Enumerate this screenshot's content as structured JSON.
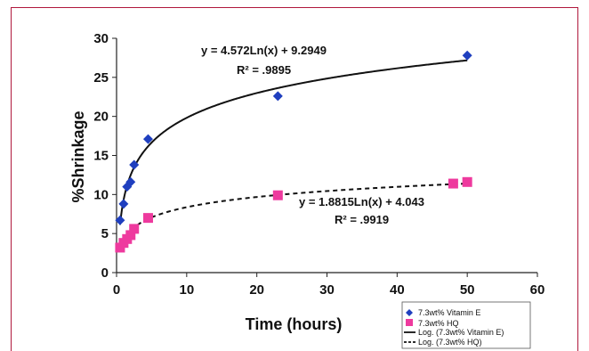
{
  "chart_data": {
    "type": "scatter",
    "xlabel": "Time (hours)",
    "ylabel": "%Shrinkage",
    "xlim": [
      0,
      60
    ],
    "ylim": [
      0,
      30
    ],
    "xticks": [
      "0",
      "10",
      "20",
      "30",
      "40",
      "50",
      "60"
    ],
    "yticks": [
      "0",
      "5",
      "10",
      "15",
      "20",
      "25",
      "30"
    ],
    "grid": false,
    "legend_position": "bottom-right",
    "series": [
      {
        "name": "7.3wt% Vitamin E",
        "marker": "diamond",
        "color": "#1f3fbf",
        "x": [
          0.5,
          1,
          1.5,
          2,
          2.5,
          4.5,
          23,
          50
        ],
        "y": [
          6.7,
          8.8,
          11.0,
          11.6,
          13.8,
          17.1,
          22.6,
          27.8
        ]
      },
      {
        "name": "7.3wt% HQ",
        "marker": "square",
        "color": "#ee3a9e",
        "x": [
          0.5,
          1,
          1.5,
          2,
          2.5,
          4.5,
          23,
          48,
          50
        ],
        "y": [
          3.2,
          3.8,
          4.3,
          4.8,
          5.6,
          7.0,
          9.9,
          11.4,
          11.6
        ]
      }
    ],
    "trendlines": [
      {
        "name": "Log. (7.3wt% Vitamin E)",
        "style": "solid",
        "color": "#111111",
        "a": 4.572,
        "b": 9.2949,
        "equation": "y = 4.572Ln(x) + 9.2949",
        "r2": "R² = .9895"
      },
      {
        "name": "Log. (7.3wt% HQ)",
        "style": "dashed",
        "color": "#111111",
        "a": 1.8815,
        "b": 4.043,
        "equation": "y = 1.8815Ln(x) + 4.043",
        "r2": "R² = .9919"
      }
    ]
  },
  "colors": {
    "frame": "#b0183c",
    "vitamin_e": "#1f3fbf",
    "hq": "#ee3a9e"
  }
}
